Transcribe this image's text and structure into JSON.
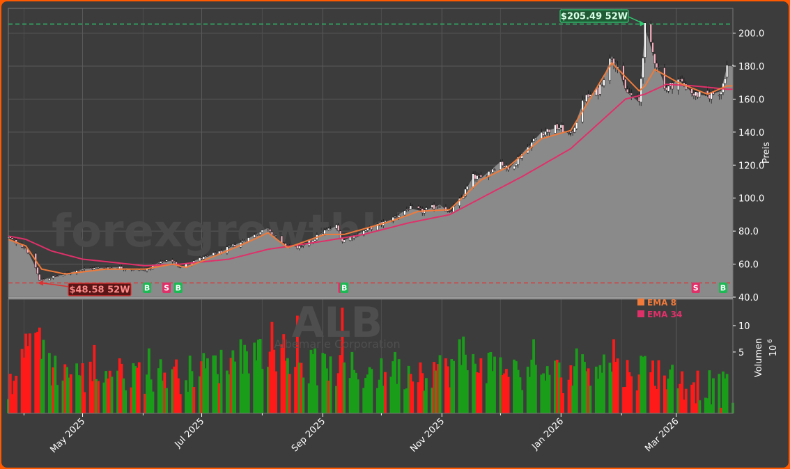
{
  "chart_data": {
    "type": "candlestick",
    "ticker": "ALB",
    "company": "Albemarle Corporation",
    "watermark": "forexgrowthbike.trade",
    "colors": {
      "background": "#3c3c3c",
      "frame_border": "#ff5a00",
      "area_fill": "#8a8a8a",
      "ema_short": "#f07a3a",
      "ema_long": "#e0306a",
      "buy": "#1db954",
      "sell": "#e0306a",
      "high_line": "#2ecc71",
      "low_line": "#e03030",
      "volume_up": "#1a9e1a",
      "volume_down": "#ff1a1a"
    },
    "price_axis": {
      "label": "Preis",
      "range": [
        40,
        215
      ],
      "ticks": [
        40,
        60,
        80,
        100,
        120,
        140,
        160,
        180,
        200
      ],
      "tick_labels": [
        "40.0",
        "60.0",
        "80.0",
        "100.0",
        "120.0",
        "140.0",
        "160.0",
        "180.0",
        "200.0"
      ]
    },
    "volume_axis": {
      "label": "Volumen",
      "scale_label": "10",
      "scale_exponent": "6",
      "scale": "log",
      "range_millions": [
        1,
        20
      ],
      "ticks": [
        5,
        10
      ],
      "tick_labels": [
        "5",
        "10"
      ]
    },
    "x_axis": {
      "start": "2025-03-24",
      "end": "2026-03-30",
      "ticks": [
        {
          "date": "2025-05-01",
          "label": "May 2025"
        },
        {
          "date": "2025-07-01",
          "label": "Jul 2025"
        },
        {
          "date": "2025-09-01",
          "label": "Sep 2025"
        },
        {
          "date": "2025-11-01",
          "label": "Nov 2025"
        },
        {
          "date": "2026-01-01",
          "label": "Jan 2026"
        },
        {
          "date": "2026-03-01",
          "label": "Mar 2026"
        }
      ]
    },
    "high_52w": {
      "value": 205.49,
      "label": "$205.49 52W",
      "date": "2026-02-13"
    },
    "low_52w": {
      "value": 48.58,
      "label": "$48.58 52W",
      "date": "2025-04-08"
    },
    "legend": [
      {
        "name": "EMA 8",
        "color": "#f07a3a"
      },
      {
        "name": "EMA 34",
        "color": "#e0306a"
      }
    ],
    "signals": [
      {
        "type": "B",
        "date": "2025-06-03"
      },
      {
        "type": "S",
        "date": "2025-06-13"
      },
      {
        "type": "B",
        "date": "2025-06-19"
      },
      {
        "type": "S",
        "date": "2025-09-11"
      },
      {
        "type": "B",
        "date": "2025-09-12"
      },
      {
        "type": "S",
        "date": "2026-03-11"
      },
      {
        "type": "B",
        "date": "2026-03-25"
      }
    ],
    "last_price": 178.0,
    "price_anchors": [
      [
        "2025-03-24",
        76
      ],
      [
        "2025-03-28",
        73
      ],
      [
        "2025-04-02",
        70
      ],
      [
        "2025-04-07",
        58
      ],
      [
        "2025-04-09",
        50
      ],
      [
        "2025-04-15",
        52
      ],
      [
        "2025-04-22",
        54
      ],
      [
        "2025-05-01",
        57
      ],
      [
        "2025-05-13",
        58
      ],
      [
        "2025-05-20",
        58
      ],
      [
        "2025-06-02",
        56
      ],
      [
        "2025-06-09",
        61
      ],
      [
        "2025-06-16",
        62
      ],
      [
        "2025-06-20",
        58
      ],
      [
        "2025-06-27",
        62
      ],
      [
        "2025-07-10",
        67
      ],
      [
        "2025-07-24",
        75
      ],
      [
        "2025-08-04",
        82
      ],
      [
        "2025-08-11",
        72
      ],
      [
        "2025-08-21",
        70
      ],
      [
        "2025-09-02",
        80
      ],
      [
        "2025-09-08",
        83
      ],
      [
        "2025-09-11",
        74
      ],
      [
        "2025-09-22",
        80
      ],
      [
        "2025-10-06",
        87
      ],
      [
        "2025-10-15",
        94
      ],
      [
        "2025-10-22",
        92
      ],
      [
        "2025-10-31",
        96
      ],
      [
        "2025-11-05",
        91
      ],
      [
        "2025-11-11",
        100
      ],
      [
        "2025-11-17",
        113
      ],
      [
        "2025-11-21",
        112
      ],
      [
        "2025-12-01",
        122
      ],
      [
        "2025-12-05",
        117
      ],
      [
        "2025-12-12",
        127
      ],
      [
        "2025-12-22",
        140
      ],
      [
        "2025-12-31",
        143
      ],
      [
        "2026-01-06",
        138
      ],
      [
        "2026-01-13",
        160
      ],
      [
        "2026-01-20",
        165
      ],
      [
        "2026-01-27",
        186
      ],
      [
        "2026-01-30",
        180
      ],
      [
        "2026-02-03",
        165
      ],
      [
        "2026-02-10",
        158
      ],
      [
        "2026-02-13",
        203
      ],
      [
        "2026-02-18",
        184
      ],
      [
        "2026-02-24",
        166
      ],
      [
        "2026-03-02",
        172
      ],
      [
        "2026-03-10",
        163
      ],
      [
        "2026-03-17",
        162
      ],
      [
        "2026-03-24",
        165
      ],
      [
        "2026-03-27",
        180
      ]
    ],
    "ema8_anchors": [
      [
        "2025-03-24",
        75
      ],
      [
        "2025-04-02",
        71
      ],
      [
        "2025-04-10",
        57
      ],
      [
        "2025-04-22",
        54
      ],
      [
        "2025-05-13",
        57
      ],
      [
        "2025-06-02",
        57
      ],
      [
        "2025-06-16",
        60
      ],
      [
        "2025-06-23",
        58
      ],
      [
        "2025-07-10",
        66
      ],
      [
        "2025-07-24",
        73
      ],
      [
        "2025-08-04",
        79
      ],
      [
        "2025-08-14",
        70
      ],
      [
        "2025-09-02",
        78
      ],
      [
        "2025-09-12",
        78
      ],
      [
        "2025-10-06",
        86
      ],
      [
        "2025-10-20",
        92
      ],
      [
        "2025-11-05",
        93
      ],
      [
        "2025-11-21",
        111
      ],
      [
        "2025-12-05",
        119
      ],
      [
        "2025-12-22",
        136
      ],
      [
        "2026-01-06",
        141
      ],
      [
        "2026-01-27",
        182
      ],
      [
        "2026-02-10",
        165
      ],
      [
        "2026-02-13",
        168
      ],
      [
        "2026-02-18",
        178
      ],
      [
        "2026-03-02",
        170
      ],
      [
        "2026-03-17",
        163
      ],
      [
        "2026-03-27",
        168
      ]
    ],
    "ema34_anchors": [
      [
        "2025-03-24",
        77
      ],
      [
        "2025-04-02",
        75
      ],
      [
        "2025-04-15",
        68
      ],
      [
        "2025-05-01",
        63
      ],
      [
        "2025-06-02",
        59
      ],
      [
        "2025-06-20",
        60
      ],
      [
        "2025-07-15",
        63
      ],
      [
        "2025-08-04",
        69
      ],
      [
        "2025-09-02",
        74
      ],
      [
        "2025-09-22",
        78
      ],
      [
        "2025-10-15",
        85
      ],
      [
        "2025-11-05",
        90
      ],
      [
        "2025-11-21",
        100
      ],
      [
        "2025-12-12",
        113
      ],
      [
        "2026-01-06",
        130
      ],
      [
        "2026-01-20",
        145
      ],
      [
        "2026-02-03",
        160
      ],
      [
        "2026-02-13",
        163
      ],
      [
        "2026-02-24",
        169
      ],
      [
        "2026-03-10",
        168
      ],
      [
        "2026-03-27",
        166
      ]
    ],
    "volume_anchors_millions": [
      [
        "2025-03-24",
        1.8
      ],
      [
        "2025-04-07",
        8
      ],
      [
        "2025-04-15",
        3.5
      ],
      [
        "2025-05-01",
        2.8
      ],
      [
        "2025-05-15",
        3
      ],
      [
        "2025-06-02",
        3
      ],
      [
        "2025-06-20",
        3
      ],
      [
        "2025-07-15",
        4
      ],
      [
        "2025-08-04",
        6
      ],
      [
        "2025-08-14",
        4
      ],
      [
        "2025-09-02",
        3.5
      ],
      [
        "2025-09-15",
        3
      ],
      [
        "2025-10-06",
        3
      ],
      [
        "2025-11-05",
        3.5
      ],
      [
        "2025-11-21",
        4
      ],
      [
        "2025-12-12",
        3
      ],
      [
        "2026-01-06",
        3
      ],
      [
        "2026-01-20",
        4
      ],
      [
        "2026-02-03",
        3
      ],
      [
        "2026-02-13",
        3.5
      ],
      [
        "2026-03-02",
        2.5
      ],
      [
        "2026-03-27",
        2
      ]
    ],
    "volume_spikes_millions": [
      [
        "2025-04-09",
        9.5
      ],
      [
        "2025-04-08",
        8.5
      ],
      [
        "2025-05-07",
        6
      ],
      [
        "2025-05-22",
        2.5
      ],
      [
        "2025-06-04",
        5.5
      ],
      [
        "2025-07-21",
        7
      ],
      [
        "2025-08-06",
        11
      ],
      [
        "2025-08-12",
        8
      ],
      [
        "2025-08-19",
        13
      ],
      [
        "2025-08-28",
        5.5
      ],
      [
        "2025-09-11",
        16
      ],
      [
        "2025-09-16",
        5
      ],
      [
        "2025-10-08",
        5
      ],
      [
        "2025-11-10",
        7
      ],
      [
        "2025-11-12",
        7.5
      ],
      [
        "2025-12-18",
        7
      ],
      [
        "2026-01-09",
        5.5
      ],
      [
        "2026-01-28",
        7
      ],
      [
        "2026-02-13",
        4.5
      ],
      [
        "2026-03-25",
        3
      ]
    ]
  }
}
